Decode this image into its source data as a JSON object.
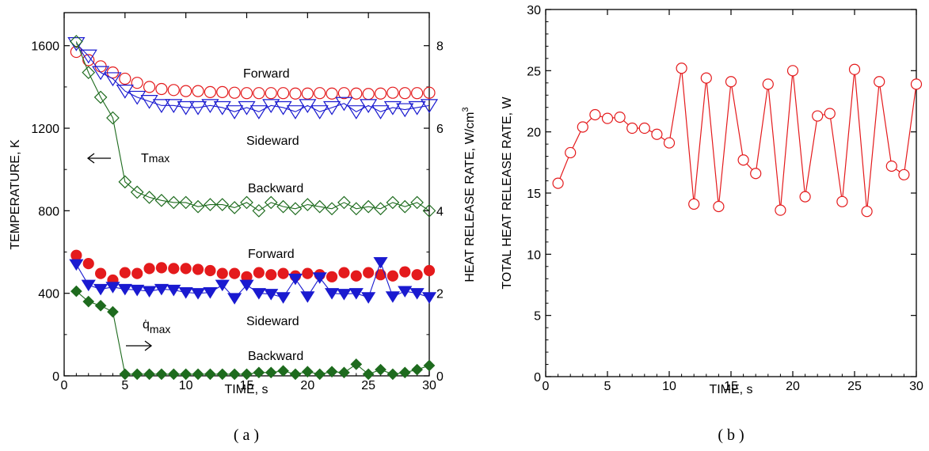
{
  "colors": {
    "red": "#e41a1c",
    "blue": "#1a1ad0",
    "green": "#1e6b1e",
    "axis": "#000000"
  },
  "chart_data": [
    {
      "id": "a",
      "type": "scatter",
      "caption": "( a )",
      "xlabel": "TIME, s",
      "ylabel_left": "TEMPERATURE, K",
      "ylabel_right": "HEAT RELEASE RATE, W/cm",
      "ylabel_right_sup": "3",
      "xlim": [
        0,
        30
      ],
      "ylim_left": [
        0,
        1760
      ],
      "ylim_right": [
        0,
        8.8
      ],
      "x_ticks": [
        0,
        5,
        10,
        15,
        20,
        25,
        30
      ],
      "y_left_ticks": [
        0,
        400,
        800,
        1200,
        1600
      ],
      "y_right_ticks": [
        0,
        2,
        4,
        6,
        8
      ],
      "grid": false,
      "annotations": {
        "forward_top": "Forward",
        "sideward_top": "Sideward",
        "backward_top": "Backward",
        "tmax_main": "T",
        "tmax_sub": "max",
        "forward_bottom": "Forward",
        "sideward_bottom": "Sideward",
        "backward_bottom": "Backward",
        "qmax_main": "q̇",
        "qmax_sub": "max"
      },
      "series": [
        {
          "axis": "left",
          "marker": "circle-open",
          "color": "red",
          "connected": false,
          "x": [
            1,
            2,
            3,
            4,
            5,
            6,
            7,
            8,
            9,
            10,
            11,
            12,
            13,
            14,
            15,
            16,
            17,
            18,
            19,
            20,
            21,
            22,
            23,
            24,
            25,
            26,
            27,
            28,
            29,
            30
          ],
          "y": [
            1570,
            1530,
            1500,
            1470,
            1440,
            1420,
            1400,
            1390,
            1385,
            1380,
            1380,
            1375,
            1375,
            1372,
            1370,
            1370,
            1370,
            1370,
            1368,
            1368,
            1370,
            1368,
            1370,
            1368,
            1366,
            1368,
            1372,
            1370,
            1370,
            1372
          ]
        },
        {
          "axis": "left",
          "marker": "triangle-down-open",
          "color": "blue",
          "connected": true,
          "x": [
            1,
            2,
            3,
            4,
            5,
            6,
            7,
            8,
            9,
            10,
            11,
            12,
            13,
            14,
            15,
            16,
            17,
            18,
            19,
            20,
            21,
            22,
            23,
            24,
            25,
            26,
            27,
            28,
            29,
            30
          ],
          "y": [
            1610,
            1550,
            1470,
            1440,
            1380,
            1350,
            1330,
            1310,
            1310,
            1300,
            1300,
            1310,
            1300,
            1280,
            1300,
            1280,
            1310,
            1300,
            1280,
            1310,
            1280,
            1300,
            1320,
            1280,
            1310,
            1280,
            1300,
            1290,
            1300,
            1310
          ]
        },
        {
          "axis": "left",
          "marker": "diamond-open",
          "color": "green",
          "connected": true,
          "x": [
            1,
            2,
            3,
            4,
            5,
            6,
            7,
            8,
            9,
            10,
            11,
            12,
            13,
            14,
            15,
            16,
            17,
            18,
            19,
            20,
            21,
            22,
            23,
            24,
            25,
            26,
            27,
            28,
            29,
            30
          ],
          "y": [
            1620,
            1470,
            1350,
            1250,
            940,
            890,
            865,
            850,
            840,
            840,
            820,
            830,
            830,
            815,
            840,
            800,
            840,
            820,
            810,
            830,
            820,
            810,
            840,
            810,
            820,
            810,
            840,
            820,
            840,
            800
          ]
        },
        {
          "axis": "right",
          "marker": "circle",
          "color": "red",
          "connected": false,
          "x": [
            1,
            2,
            3,
            4,
            5,
            6,
            7,
            8,
            9,
            10,
            11,
            12,
            13,
            14,
            15,
            16,
            17,
            18,
            19,
            20,
            21,
            22,
            23,
            24,
            25,
            26,
            27,
            28,
            29,
            30
          ],
          "y": [
            2.92,
            2.72,
            2.48,
            2.32,
            2.5,
            2.48,
            2.6,
            2.62,
            2.6,
            2.6,
            2.58,
            2.55,
            2.48,
            2.48,
            2.4,
            2.5,
            2.45,
            2.48,
            2.42,
            2.48,
            2.45,
            2.4,
            2.5,
            2.42,
            2.5,
            2.45,
            2.42,
            2.52,
            2.45,
            2.55
          ]
        },
        {
          "axis": "right",
          "marker": "triangle-down",
          "color": "blue",
          "connected": true,
          "x": [
            1,
            2,
            3,
            4,
            5,
            6,
            7,
            8,
            9,
            10,
            11,
            12,
            13,
            14,
            15,
            16,
            17,
            18,
            19,
            20,
            21,
            22,
            23,
            24,
            25,
            26,
            27,
            28,
            29,
            30
          ],
          "y": [
            2.7,
            2.2,
            2.1,
            2.15,
            2.1,
            2.08,
            2.05,
            2.1,
            2.08,
            2.02,
            2.0,
            2.02,
            2.2,
            1.88,
            2.2,
            2.0,
            1.98,
            1.9,
            2.35,
            1.92,
            2.38,
            2.0,
            1.98,
            2.0,
            1.9,
            2.75,
            1.92,
            2.05,
            2.0,
            1.9
          ]
        },
        {
          "axis": "right",
          "marker": "diamond",
          "color": "green",
          "connected": true,
          "x": [
            1,
            2,
            3,
            4,
            5,
            6,
            7,
            8,
            9,
            10,
            11,
            12,
            13,
            14,
            15,
            16,
            17,
            18,
            19,
            20,
            21,
            22,
            23,
            24,
            25,
            26,
            27,
            28,
            29,
            30
          ],
          "y": [
            2.05,
            1.8,
            1.7,
            1.55,
            0.04,
            0.04,
            0.04,
            0.04,
            0.04,
            0.04,
            0.04,
            0.04,
            0.04,
            0.04,
            0.04,
            0.08,
            0.08,
            0.12,
            0.04,
            0.1,
            0.04,
            0.1,
            0.08,
            0.28,
            0.04,
            0.15,
            0.04,
            0.08,
            0.15,
            0.25
          ]
        }
      ]
    },
    {
      "id": "b",
      "type": "line",
      "caption": "( b )",
      "xlabel": "TIME, s",
      "ylabel": "TOTAL HEAT RELEASE RATE, W",
      "xlim": [
        0,
        30
      ],
      "ylim": [
        0,
        30
      ],
      "x_ticks": [
        0,
        5,
        10,
        15,
        20,
        25,
        30
      ],
      "y_ticks": [
        0,
        5,
        10,
        15,
        20,
        25,
        30
      ],
      "grid": false,
      "series": [
        {
          "marker": "circle-open",
          "color": "red",
          "connected": true,
          "x": [
            1,
            2,
            3,
            4,
            5,
            6,
            7,
            8,
            9,
            10,
            11,
            12,
            13,
            14,
            15,
            16,
            17,
            18,
            19,
            20,
            21,
            22,
            23,
            24,
            25,
            26,
            27,
            28,
            29,
            30
          ],
          "y": [
            15.8,
            18.3,
            20.4,
            21.4,
            21.1,
            21.2,
            20.3,
            20.3,
            19.8,
            19.1,
            25.2,
            14.1,
            24.4,
            13.9,
            24.1,
            17.7,
            16.6,
            23.9,
            13.6,
            25.0,
            14.7,
            21.3,
            21.5,
            14.3,
            25.1,
            13.5,
            24.1,
            17.2,
            16.5,
            23.9
          ]
        }
      ]
    }
  ]
}
